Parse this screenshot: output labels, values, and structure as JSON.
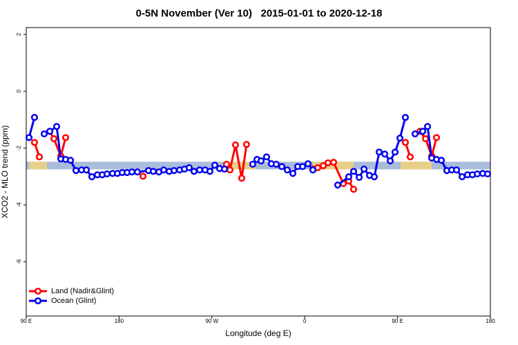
{
  "chart_data": {
    "type": "line",
    "title": "0-5N November (Ver 10)   2015-01-01 to 2020-12-18",
    "x_label": "Longitude (deg E)",
    "y_label": "XCO2 - MLO trend (ppm)",
    "xlim": [
      90,
      540
    ],
    "ylim": [
      -7.91,
      2.24
    ],
    "xticks": [
      {
        "value": 90,
        "label": "90 E"
      },
      {
        "value": 180,
        "label": "180"
      },
      {
        "value": 270,
        "label": "90 W"
      },
      {
        "value": 360,
        "label": "0"
      },
      {
        "value": 450,
        "label": "90 E"
      },
      {
        "value": 540,
        "label": "180"
      }
    ],
    "yticks": [
      -6,
      -4,
      -2,
      0,
      2
    ],
    "band": {
      "ylim": [
        -2.75,
        -2.48
      ],
      "color": "#a9bddb",
      "highlight_color": "#f3d27a",
      "highlight_ranges": [
        [
          92.7,
          110.1
        ],
        [
          285.5,
          312.3
        ],
        [
          367.9,
          407.4
        ],
        [
          453.0,
          483.1
        ]
      ]
    },
    "legend": "bottom-left",
    "series": [
      {
        "name": "Land (Nadir&Glint)",
        "color": "#ff0000",
        "x": [
          98.0,
          102.7,
          null,
          112.8,
          116.8,
          123.5,
          128.2,
          null,
          203.2,
          null,
          284.2,
          287.5,
          292.9,
          298.9,
          303.6,
          null,
          367.9,
          372.6,
          378.0,
          382.6,
          388.0,
          397.4,
          402.7,
          407.4,
          null,
          457.6,
          462.3,
          null,
          471.7,
          477.1,
          483.1,
          487.8
        ],
        "values": [
          -1.8,
          -2.31,
          null,
          -1.41,
          -1.67,
          -2.28,
          -1.63,
          null,
          -2.99,
          null,
          -2.57,
          -2.77,
          -1.89,
          -3.06,
          -1.87,
          null,
          -2.74,
          -2.69,
          -2.62,
          -2.52,
          -2.5,
          -3.25,
          -3.16,
          -3.45,
          null,
          -1.8,
          -2.31,
          null,
          -1.41,
          -1.67,
          -2.28,
          -1.63
        ]
      },
      {
        "name": "Ocean (Glint)",
        "color": "#0000ee",
        "x": [
          92.7,
          98.0,
          null,
          107.4,
          112.8,
          119.5,
          123.5,
          128.2,
          132.9,
          138.2,
          143.6,
          148.3,
          153.6,
          159.0,
          163.7,
          168.3,
          173.7,
          178.4,
          183.1,
          187.8,
          192.5,
          197.8,
          208.5,
          213.2,
          218.6,
          223.3,
          228.6,
          233.3,
          238.7,
          243.4,
          248.0,
          252.7,
          258.1,
          263.4,
          268.1,
          272.8,
          277.5,
          282.2,
          null,
          309.6,
          313.7,
          317.7,
          323.0,
          327.7,
          332.4,
          337.8,
          343.1,
          348.5,
          353.2,
          357.9,
          363.2,
          367.9,
          null,
          392.0,
          402.7,
          407.4,
          412.8,
          417.5,
          422.8,
          427.5,
          432.2,
          437.6,
          442.9,
          447.6,
          452.3,
          457.6,
          null,
          467.0,
          474.4,
          479.1,
          483.1,
          487.8,
          492.5,
          497.8,
          502.5,
          507.2,
          512.6,
          517.9,
          522.6,
          527.3,
          532.6,
          537.3
        ],
        "values": [
          -1.63,
          -0.92,
          null,
          -1.5,
          -1.41,
          -1.24,
          -2.38,
          -2.4,
          -2.43,
          -2.79,
          -2.77,
          -2.77,
          -3.01,
          -2.94,
          -2.94,
          -2.91,
          -2.89,
          -2.89,
          -2.86,
          -2.86,
          -2.84,
          -2.84,
          -2.79,
          -2.82,
          -2.84,
          -2.77,
          -2.82,
          -2.79,
          -2.77,
          -2.74,
          -2.69,
          -2.82,
          -2.77,
          -2.77,
          -2.82,
          -2.6,
          -2.72,
          -2.74,
          null,
          -2.57,
          -2.4,
          -2.45,
          -2.31,
          -2.55,
          -2.57,
          -2.65,
          -2.77,
          -2.89,
          -2.65,
          -2.65,
          -2.55,
          -2.77,
          null,
          -3.3,
          -3.01,
          -2.82,
          -3.03,
          -2.74,
          -2.96,
          -3.01,
          -2.14,
          -2.21,
          -2.45,
          -2.14,
          -1.65,
          -0.92,
          null,
          -1.5,
          -1.41,
          -1.24,
          -2.35,
          -2.4,
          -2.43,
          -2.79,
          -2.77,
          -2.77,
          -3.01,
          -2.94,
          -2.94,
          -2.91,
          -2.89,
          -2.91
        ]
      }
    ]
  }
}
